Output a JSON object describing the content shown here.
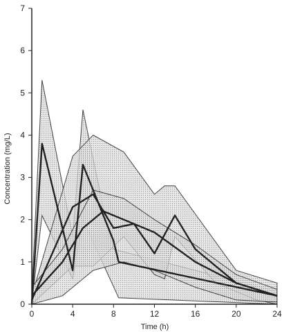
{
  "chart_data": {
    "type": "line",
    "title": "",
    "xlabel": "Time (h)",
    "ylabel": "Concentration (mg/L)",
    "xlim": [
      0,
      24
    ],
    "ylim": [
      0,
      7
    ],
    "xticks": [
      0,
      4,
      8,
      12,
      16,
      20,
      24
    ],
    "yticks": [
      0,
      1,
      2,
      3,
      4,
      5,
      6,
      7
    ],
    "grid": false,
    "legend": "none",
    "colors": {
      "line": "#222222",
      "band_stroke": "#444444",
      "band_fill": "#c8c8c8"
    },
    "bands": [
      {
        "upper": {
          "x": [
            0,
            1,
            4,
            5,
            7.5,
            8,
            24
          ],
          "y": [
            0.3,
            5.3,
            1.6,
            4.6,
            1.7,
            1.3,
            0.3
          ]
        },
        "lower": {
          "x": [
            0,
            1,
            4,
            5,
            8.5,
            24
          ],
          "y": [
            0,
            2.1,
            0.6,
            2.0,
            0.15,
            0
          ]
        }
      },
      {
        "upper": {
          "x": [
            0,
            4,
            6,
            9,
            12,
            13,
            14,
            20,
            24
          ],
          "y": [
            0.2,
            3.5,
            4.0,
            3.6,
            2.6,
            2.8,
            2.8,
            0.8,
            0.5
          ]
        },
        "lower": {
          "x": [
            0,
            4,
            6,
            9,
            12,
            13,
            14,
            18,
            22,
            24
          ],
          "y": [
            0,
            0.9,
            0.9,
            1.6,
            0.7,
            0.6,
            1.6,
            0.5,
            0.1,
            0
          ]
        }
      },
      {
        "upper": {
          "x": [
            0,
            3,
            6,
            9,
            12,
            16,
            20,
            24
          ],
          "y": [
            0.4,
            1.3,
            2.7,
            2.5,
            2.0,
            1.4,
            0.7,
            0.35
          ]
        },
        "lower": {
          "x": [
            0,
            3,
            6,
            9,
            12,
            16,
            20,
            24
          ],
          "y": [
            0,
            0.2,
            0.8,
            1.0,
            0.8,
            0.4,
            0.1,
            0.05
          ]
        }
      }
    ],
    "series": [
      {
        "x": [
          0,
          1,
          4,
          5,
          8,
          8.5,
          24
        ],
        "y": [
          0,
          3.8,
          0.8,
          3.3,
          1.5,
          1.0,
          0.2
        ]
      },
      {
        "x": [
          0,
          4,
          6,
          8,
          10,
          12,
          14,
          16,
          20,
          24
        ],
        "y": [
          0.1,
          2.3,
          2.6,
          1.8,
          1.9,
          1.2,
          2.1,
          1.3,
          0.5,
          0.2
        ]
      },
      {
        "x": [
          0,
          3,
          5,
          7,
          9,
          12,
          16,
          20,
          24
        ],
        "y": [
          0.2,
          1.0,
          1.8,
          2.2,
          2.0,
          1.7,
          1.0,
          0.5,
          0.2
        ]
      }
    ]
  }
}
